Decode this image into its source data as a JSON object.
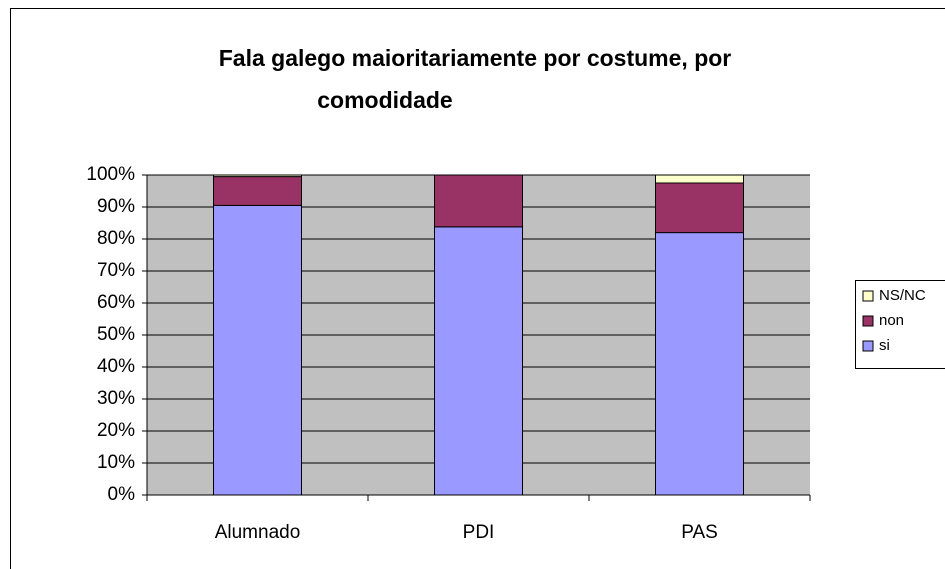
{
  "chart_data": {
    "type": "stacked_bar",
    "title": [
      "Fala galego maioritariamente por costume, por",
      "comodidade"
    ],
    "categories": [
      "Alumnado",
      "PDI",
      "PAS"
    ],
    "series": [
      {
        "name": "si",
        "color": "#9999ff",
        "values": [
          90.5,
          83.8,
          82
        ]
      },
      {
        "name": "non",
        "color": "#993366",
        "values": [
          9,
          16.2,
          15.5
        ]
      },
      {
        "name": "NS/NC",
        "color": "#ffffcc",
        "values": [
          0.5,
          0,
          2.5
        ]
      }
    ],
    "ylim": [
      0,
      100
    ],
    "yticks": [
      {
        "value": 0,
        "label": "0%"
      },
      {
        "value": 10,
        "label": "10%"
      },
      {
        "value": 20,
        "label": "20%"
      },
      {
        "value": 30,
        "label": "30%"
      },
      {
        "value": 40,
        "label": "40%"
      },
      {
        "value": 50,
        "label": "50%"
      },
      {
        "value": 60,
        "label": "60%"
      },
      {
        "value": 70,
        "label": "70%"
      },
      {
        "value": 80,
        "label": "80%"
      },
      {
        "value": 90,
        "label": "90%"
      },
      {
        "value": 100,
        "label": "100%"
      }
    ],
    "grid": true,
    "plot_background": "#c0c0c0",
    "legend": "right"
  }
}
